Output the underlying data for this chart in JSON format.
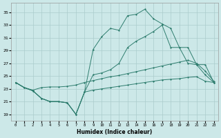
{
  "background_color": "#cce8e8",
  "grid_color": "#aacccc",
  "line_color": "#2e7d6e",
  "xlabel": "Humidex (Indice chaleur)",
  "xlim": [
    -0.5,
    23.5
  ],
  "ylim": [
    18.0,
    36.5
  ],
  "yticks": [
    19,
    21,
    23,
    25,
    27,
    29,
    31,
    33,
    35
  ],
  "xticks": [
    0,
    1,
    2,
    3,
    4,
    5,
    6,
    7,
    8,
    9,
    10,
    11,
    12,
    13,
    14,
    15,
    16,
    17,
    18,
    19,
    20,
    21,
    22,
    23
  ],
  "line1_x": [
    0,
    1,
    2,
    3,
    4,
    5,
    6,
    7,
    8,
    9,
    10,
    11,
    12,
    13,
    14,
    15,
    16,
    17,
    18,
    19,
    20,
    21,
    22,
    23
  ],
  "line1_y": [
    24.0,
    23.2,
    22.7,
    21.5,
    21.0,
    21.0,
    20.8,
    19.0,
    22.5,
    22.8,
    23.0,
    23.2,
    23.4,
    23.6,
    23.8,
    24.0,
    24.2,
    24.4,
    24.5,
    24.6,
    24.8,
    24.9,
    24.2,
    24.0
  ],
  "line2_x": [
    0,
    1,
    2,
    3,
    4,
    5,
    6,
    7,
    8,
    9,
    10,
    11,
    12,
    13,
    14,
    15,
    16,
    17,
    18,
    19,
    20,
    21,
    22,
    23
  ],
  "line2_y": [
    24.0,
    23.2,
    22.8,
    23.2,
    23.3,
    23.3,
    23.4,
    23.6,
    24.0,
    24.3,
    24.6,
    24.9,
    25.1,
    25.4,
    25.7,
    26.0,
    26.3,
    26.6,
    26.9,
    27.2,
    27.5,
    27.0,
    25.8,
    24.2
  ],
  "line3_x": [
    0,
    1,
    2,
    3,
    4,
    5,
    6,
    7,
    8,
    9,
    10,
    11,
    12,
    13,
    14,
    15,
    16,
    17,
    18,
    19,
    20,
    21,
    22,
    23
  ],
  "line3_y": [
    24.0,
    23.2,
    22.7,
    21.5,
    21.0,
    21.0,
    20.8,
    19.0,
    22.5,
    29.2,
    31.2,
    32.5,
    32.2,
    34.5,
    34.7,
    35.5,
    34.0,
    33.2,
    32.5,
    29.5,
    29.5,
    26.8,
    25.2,
    24.0
  ],
  "line4_x": [
    0,
    1,
    2,
    3,
    4,
    5,
    6,
    7,
    8,
    9,
    10,
    11,
    12,
    13,
    14,
    15,
    16,
    17,
    18,
    19,
    20,
    21,
    22,
    23
  ],
  "line4_y": [
    24.0,
    23.2,
    22.7,
    21.5,
    21.0,
    21.0,
    20.8,
    19.0,
    22.5,
    25.2,
    25.5,
    26.0,
    27.0,
    29.5,
    30.5,
    31.2,
    32.0,
    33.0,
    29.5,
    29.5,
    27.0,
    26.8,
    26.8,
    24.0
  ]
}
